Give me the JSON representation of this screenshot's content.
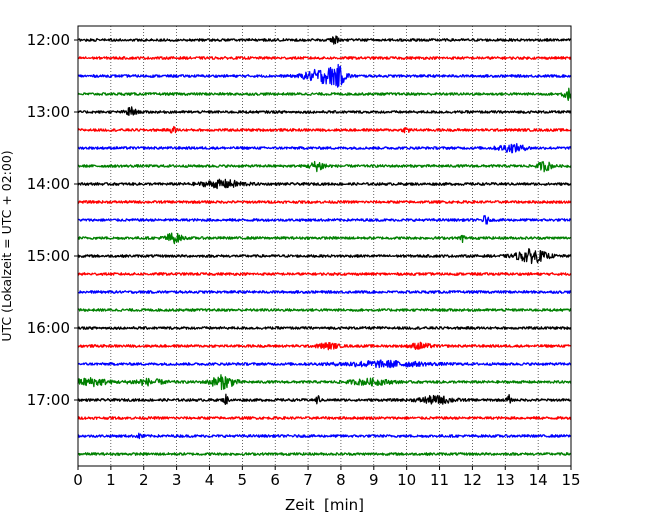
{
  "chart_data": {
    "type": "line",
    "subtype": "helicorder-seismogram",
    "title": "",
    "xlabel": "Zeit  [min]",
    "ylabel": "UTC (Lokalzeit = UTC + 02:00)",
    "xlim": [
      0,
      15
    ],
    "x_ticks": [
      "0",
      "1",
      "2",
      "3",
      "4",
      "5",
      "6",
      "7",
      "8",
      "9",
      "10",
      "11",
      "12",
      "13",
      "14",
      "15"
    ],
    "y_ticks": [
      {
        "row": 0,
        "label": "12:00"
      },
      {
        "row": 4,
        "label": "13:00"
      },
      {
        "row": 8,
        "label": "14:00"
      },
      {
        "row": 12,
        "label": "15:00"
      },
      {
        "row": 16,
        "label": "16:00"
      },
      {
        "row": 20,
        "label": "17:00"
      }
    ],
    "grid": {
      "vertical_dotted": true,
      "horizontal": false
    },
    "legend": "none",
    "color_cycle": [
      "#000000",
      "#ff0000",
      "#0000ff",
      "#008000"
    ],
    "rows": [
      {
        "start": "12:00",
        "bursts": [
          {
            "t": 7.8,
            "amp": 0.25,
            "width": 0.1
          }
        ]
      },
      {
        "start": "12:15",
        "bursts": []
      },
      {
        "start": "12:30",
        "bursts": [
          {
            "t": 7.4,
            "amp": 0.35,
            "width": 0.5
          },
          {
            "t": 7.9,
            "amp": 0.45,
            "width": 0.25
          }
        ]
      },
      {
        "start": "12:45",
        "bursts": [
          {
            "t": 14.9,
            "amp": 0.3,
            "width": 0.15
          }
        ]
      },
      {
        "start": "13:00",
        "bursts": [
          {
            "t": 1.6,
            "amp": 0.25,
            "width": 0.15
          }
        ]
      },
      {
        "start": "13:15",
        "bursts": [
          {
            "t": 2.9,
            "amp": 0.15,
            "width": 0.1
          },
          {
            "t": 10.0,
            "amp": 0.15,
            "width": 0.1
          }
        ]
      },
      {
        "start": "13:30",
        "bursts": [
          {
            "t": 13.2,
            "amp": 0.2,
            "width": 0.4
          }
        ]
      },
      {
        "start": "13:45",
        "bursts": [
          {
            "t": 7.3,
            "amp": 0.25,
            "width": 0.25
          },
          {
            "t": 14.2,
            "amp": 0.25,
            "width": 0.2
          }
        ]
      },
      {
        "start": "14:00",
        "bursts": [
          {
            "t": 4.4,
            "amp": 0.2,
            "width": 0.6
          }
        ]
      },
      {
        "start": "14:15",
        "bursts": []
      },
      {
        "start": "14:30",
        "bursts": [
          {
            "t": 12.4,
            "amp": 0.25,
            "width": 0.08
          }
        ]
      },
      {
        "start": "14:45",
        "bursts": [
          {
            "t": 2.9,
            "amp": 0.25,
            "width": 0.25
          },
          {
            "t": 11.7,
            "amp": 0.2,
            "width": 0.06
          }
        ]
      },
      {
        "start": "15:00",
        "bursts": [
          {
            "t": 13.8,
            "amp": 0.35,
            "width": 0.45
          }
        ]
      },
      {
        "start": "15:15",
        "bursts": []
      },
      {
        "start": "15:30",
        "bursts": []
      },
      {
        "start": "15:45",
        "bursts": []
      },
      {
        "start": "16:00",
        "bursts": []
      },
      {
        "start": "16:15",
        "bursts": [
          {
            "t": 7.6,
            "amp": 0.15,
            "width": 0.3
          },
          {
            "t": 10.4,
            "amp": 0.15,
            "width": 0.3
          }
        ]
      },
      {
        "start": "16:30",
        "bursts": [
          {
            "t": 9.3,
            "amp": 0.15,
            "width": 1.2
          }
        ]
      },
      {
        "start": "16:45",
        "bursts": [
          {
            "t": 0.4,
            "amp": 0.2,
            "width": 0.5
          },
          {
            "t": 2.1,
            "amp": 0.15,
            "width": 0.5
          },
          {
            "t": 4.4,
            "amp": 0.35,
            "width": 0.35
          },
          {
            "t": 8.9,
            "amp": 0.15,
            "width": 0.6
          }
        ]
      },
      {
        "start": "17:00",
        "bursts": [
          {
            "t": 4.5,
            "amp": 0.3,
            "width": 0.06
          },
          {
            "t": 7.3,
            "amp": 0.25,
            "width": 0.06
          },
          {
            "t": 10.9,
            "amp": 0.2,
            "width": 0.5
          },
          {
            "t": 13.1,
            "amp": 0.25,
            "width": 0.06
          }
        ]
      },
      {
        "start": "17:15",
        "bursts": []
      },
      {
        "start": "17:30",
        "bursts": [
          {
            "t": 1.9,
            "amp": 0.12,
            "width": 0.1
          }
        ]
      },
      {
        "start": "17:45",
        "bursts": []
      }
    ],
    "noise_amplitude": 0.07
  }
}
